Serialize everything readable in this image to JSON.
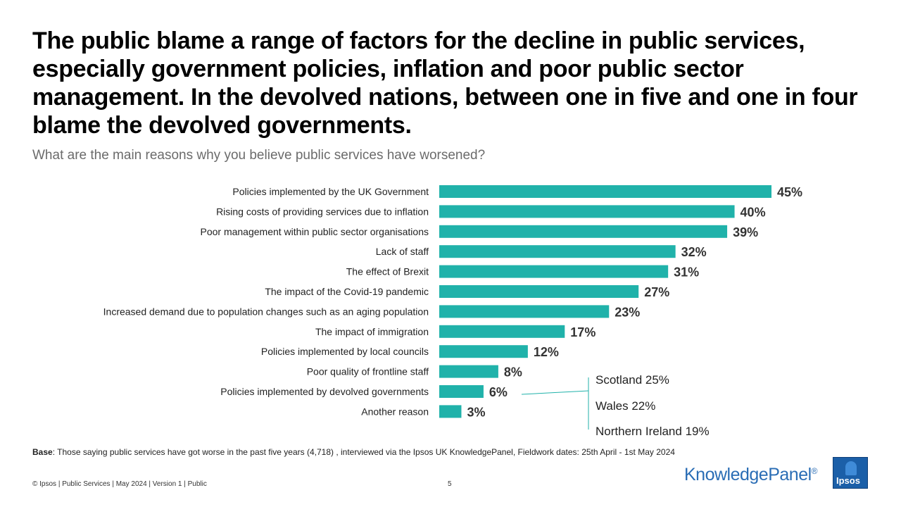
{
  "title": "The public blame a range of factors for the decline in public services, especially government policies, inflation and poor public sector management. In the devolved nations, between one in five and one in four blame the devolved governments.",
  "subtitle": "What are the main reasons why you believe public services have worsened?",
  "colors": {
    "bar": "#20b2aa",
    "callout_line": "#20b2aa"
  },
  "chart_data": {
    "type": "bar",
    "orientation": "horizontal",
    "title": "What are the main reasons why you believe public services have worsened?",
    "xlabel": "",
    "ylabel": "",
    "xlim": [
      0,
      45
    ],
    "grid": false,
    "value_suffix": "%",
    "categories": [
      "Policies implemented by the UK Government",
      "Rising costs of providing services due to inflation",
      "Poor management within public sector organisations",
      "Lack of staff",
      "The effect of Brexit",
      "The impact of the Covid-19 pandemic",
      "Increased demand due to population changes such as an aging population",
      "The impact of immigration",
      "Policies implemented by local councils",
      "Poor quality of frontline staff",
      "Policies implemented by devolved governments",
      "Another reason"
    ],
    "values": [
      45,
      40,
      39,
      32,
      31,
      27,
      23,
      17,
      12,
      8,
      6,
      3
    ],
    "annotations": [
      {
        "category": "Policies implemented by devolved governments",
        "items": [
          "Scotland 25%",
          "Wales 22%",
          "Northern Ireland 19%"
        ]
      }
    ]
  },
  "callout": {
    "scotland": "Scotland 25%",
    "wales": "Wales 22%",
    "ni": "Northern Ireland 19%"
  },
  "base": {
    "label": "Base",
    "text": ": Those saying public services have got worse in the past five years (4,718) , interviewed via the Ipsos UK KnowledgePanel, Fieldwork dates: 25th April - 1st May 2024"
  },
  "footer": {
    "copyright": "© Ipsos | Public Services | May 2024 | Version 1 | Public",
    "page": "5"
  },
  "logos": {
    "knowledgepanel": "KnowledgePanel",
    "registered": "®",
    "ipsos": "Ipsos"
  }
}
